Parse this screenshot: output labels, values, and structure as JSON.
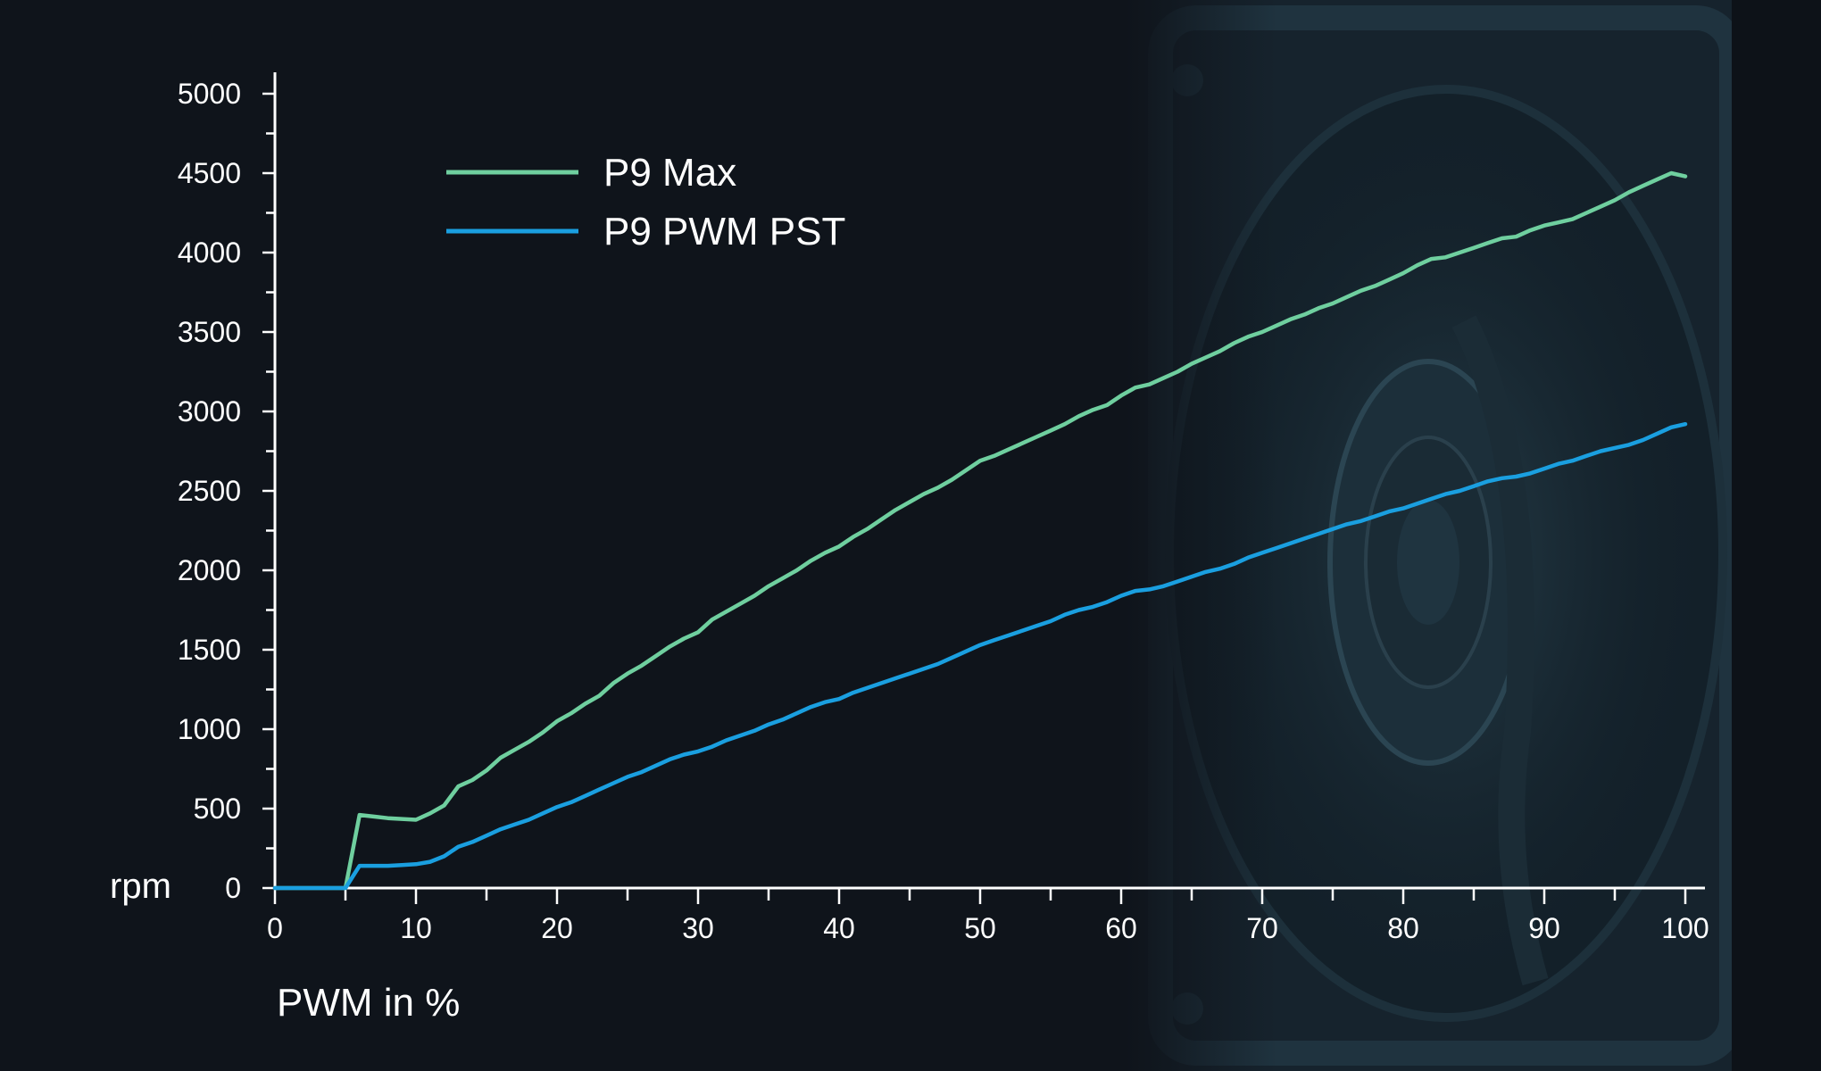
{
  "chart_data": {
    "type": "line",
    "title": "",
    "xlabel": "PWM in %",
    "ylabel": "rpm",
    "xlim": [
      0,
      100
    ],
    "ylim": [
      0,
      5000
    ],
    "x_ticks_labeled": [
      0,
      10,
      20,
      30,
      40,
      50,
      60,
      70,
      80,
      90,
      100
    ],
    "x_tick_labels": [
      "0",
      "10",
      "20",
      "30",
      "40",
      "50",
      "60",
      "70",
      "80",
      "90",
      "100"
    ],
    "y_ticks_labeled": [
      0,
      500,
      1000,
      1500,
      2000,
      2500,
      3000,
      3500,
      4000,
      4500,
      5000
    ],
    "y_tick_labels": [
      "0",
      "500",
      "1000",
      "1500",
      "2000",
      "2500",
      "3000",
      "3500",
      "4000",
      "4500",
      "5000"
    ],
    "grid": false,
    "legend_position": "top-left",
    "colors": {
      "background": "#0f141b",
      "axis": "#ffffff",
      "text": "#ffffff"
    },
    "series": [
      {
        "name": "P9 Max",
        "color": "#6fcf9f",
        "x": [
          0,
          5,
          6,
          7,
          8,
          9,
          10,
          11,
          12,
          13,
          14,
          15,
          16,
          17,
          18,
          19,
          20,
          21,
          22,
          23,
          24,
          25,
          26,
          27,
          28,
          29,
          30,
          31,
          32,
          33,
          34,
          35,
          36,
          37,
          38,
          39,
          40,
          41,
          42,
          43,
          44,
          45,
          46,
          47,
          48,
          49,
          50,
          51,
          52,
          53,
          54,
          55,
          56,
          57,
          58,
          59,
          60,
          61,
          62,
          63,
          64,
          65,
          66,
          67,
          68,
          69,
          70,
          71,
          72,
          73,
          74,
          75,
          76,
          77,
          78,
          79,
          80,
          81,
          82,
          83,
          84,
          85,
          86,
          87,
          88,
          89,
          90,
          91,
          92,
          93,
          94,
          95,
          96,
          97,
          98,
          99,
          100
        ],
        "y": [
          0,
          0,
          460,
          450,
          440,
          435,
          430,
          470,
          520,
          640,
          680,
          740,
          820,
          870,
          920,
          980,
          1050,
          1100,
          1160,
          1210,
          1290,
          1350,
          1400,
          1460,
          1520,
          1570,
          1610,
          1690,
          1740,
          1790,
          1840,
          1900,
          1950,
          2000,
          2060,
          2110,
          2150,
          2210,
          2260,
          2320,
          2380,
          2430,
          2480,
          2520,
          2570,
          2630,
          2690,
          2720,
          2760,
          2800,
          2840,
          2880,
          2920,
          2970,
          3010,
          3040,
          3100,
          3150,
          3170,
          3210,
          3250,
          3300,
          3340,
          3380,
          3430,
          3470,
          3500,
          3540,
          3580,
          3610,
          3650,
          3680,
          3720,
          3760,
          3790,
          3830,
          3870,
          3920,
          3960,
          3970,
          4000,
          4030,
          4060,
          4090,
          4100,
          4140,
          4170,
          4190,
          4210,
          4250,
          4290,
          4330,
          4380,
          4420,
          4460,
          4500,
          4480
        ]
      },
      {
        "name": "P9 PWM PST",
        "color": "#1a9fe0",
        "x": [
          0,
          5,
          6,
          7,
          8,
          9,
          10,
          11,
          12,
          13,
          14,
          15,
          16,
          17,
          18,
          19,
          20,
          21,
          22,
          23,
          24,
          25,
          26,
          27,
          28,
          29,
          30,
          31,
          32,
          33,
          34,
          35,
          36,
          37,
          38,
          39,
          40,
          41,
          42,
          43,
          44,
          45,
          46,
          47,
          48,
          49,
          50,
          51,
          52,
          53,
          54,
          55,
          56,
          57,
          58,
          59,
          60,
          61,
          62,
          63,
          64,
          65,
          66,
          67,
          68,
          69,
          70,
          71,
          72,
          73,
          74,
          75,
          76,
          77,
          78,
          79,
          80,
          81,
          82,
          83,
          84,
          85,
          86,
          87,
          88,
          89,
          90,
          91,
          92,
          93,
          94,
          95,
          96,
          97,
          98,
          99,
          100
        ],
        "y": [
          0,
          0,
          140,
          140,
          140,
          145,
          150,
          165,
          200,
          260,
          290,
          330,
          370,
          400,
          430,
          470,
          510,
          540,
          580,
          620,
          660,
          700,
          730,
          770,
          810,
          840,
          860,
          890,
          930,
          960,
          990,
          1030,
          1060,
          1100,
          1140,
          1170,
          1190,
          1230,
          1260,
          1290,
          1320,
          1350,
          1380,
          1410,
          1450,
          1490,
          1530,
          1560,
          1590,
          1620,
          1650,
          1680,
          1720,
          1750,
          1770,
          1800,
          1840,
          1870,
          1880,
          1900,
          1930,
          1960,
          1990,
          2010,
          2040,
          2080,
          2110,
          2140,
          2170,
          2200,
          2230,
          2260,
          2290,
          2310,
          2340,
          2370,
          2390,
          2420,
          2450,
          2480,
          2500,
          2530,
          2560,
          2580,
          2590,
          2610,
          2640,
          2670,
          2690,
          2720,
          2750,
          2770,
          2790,
          2820,
          2860,
          2900,
          2920
        ]
      }
    ]
  }
}
